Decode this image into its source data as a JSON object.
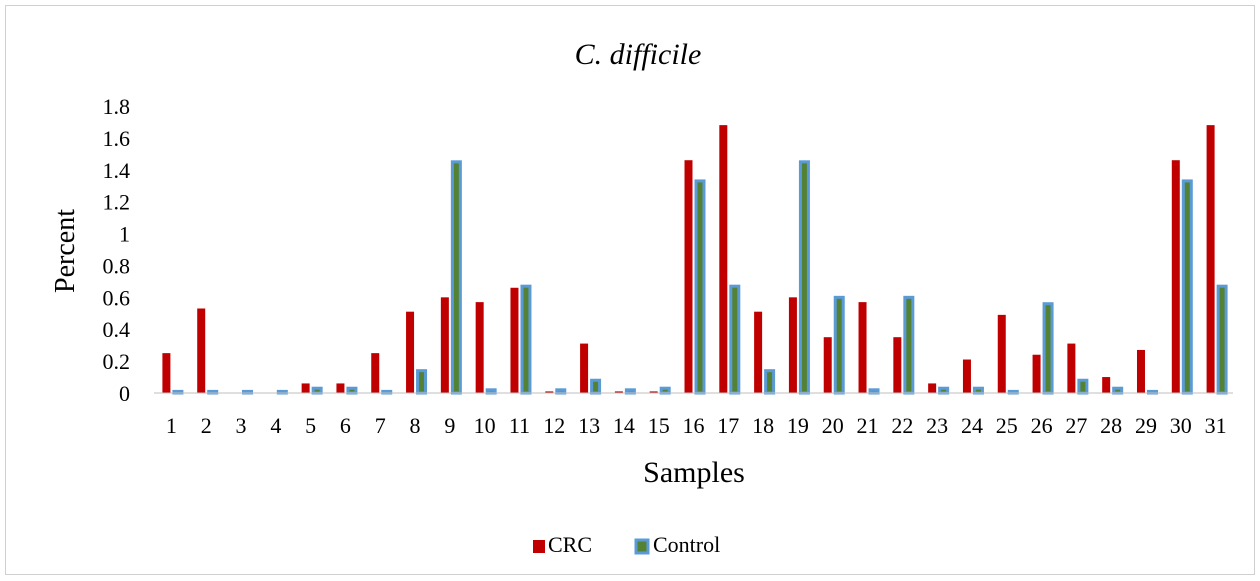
{
  "chart_data": {
    "type": "bar",
    "title": "C. difficile",
    "xlabel": "Samples",
    "ylabel": "Percent",
    "ylim": [
      0,
      1.8
    ],
    "yticks": [
      "0",
      "0.2",
      "0.4",
      "0.6",
      "0.8",
      "1",
      "1.2",
      "1.4",
      "1.6",
      "1.8"
    ],
    "categories": [
      "1",
      "2",
      "3",
      "4",
      "5",
      "6",
      "7",
      "8",
      "9",
      "10",
      "11",
      "12",
      "13",
      "14",
      "15",
      "16",
      "17",
      "18",
      "19",
      "20",
      "21",
      "22",
      "23",
      "24",
      "25",
      "26",
      "27",
      "28",
      "29",
      "30",
      "31"
    ],
    "series": [
      {
        "name": "CRC",
        "color": "#c00000",
        "values": [
          0.25,
          0.53,
          0.0,
          0.0,
          0.06,
          0.06,
          0.25,
          0.51,
          0.6,
          0.57,
          0.66,
          0.01,
          0.31,
          0.01,
          0.01,
          1.46,
          1.68,
          0.51,
          0.6,
          0.35,
          0.57,
          0.35,
          0.06,
          0.21,
          0.49,
          0.24,
          0.31,
          0.1,
          0.27,
          1.46,
          1.68
        ]
      },
      {
        "name": "Control",
        "color": "#5b9bd5",
        "inner_color": "#548235",
        "values": [
          0.01,
          0.01,
          0.01,
          0.01,
          0.03,
          0.03,
          0.01,
          0.14,
          1.45,
          0.02,
          0.67,
          0.02,
          0.08,
          0.02,
          0.03,
          1.33,
          0.67,
          0.14,
          1.45,
          0.6,
          0.02,
          0.6,
          0.03,
          0.03,
          0.01,
          0.56,
          0.08,
          0.03,
          0.01,
          1.33,
          0.67
        ]
      }
    ],
    "grid": false,
    "legend_position": "bottom"
  }
}
